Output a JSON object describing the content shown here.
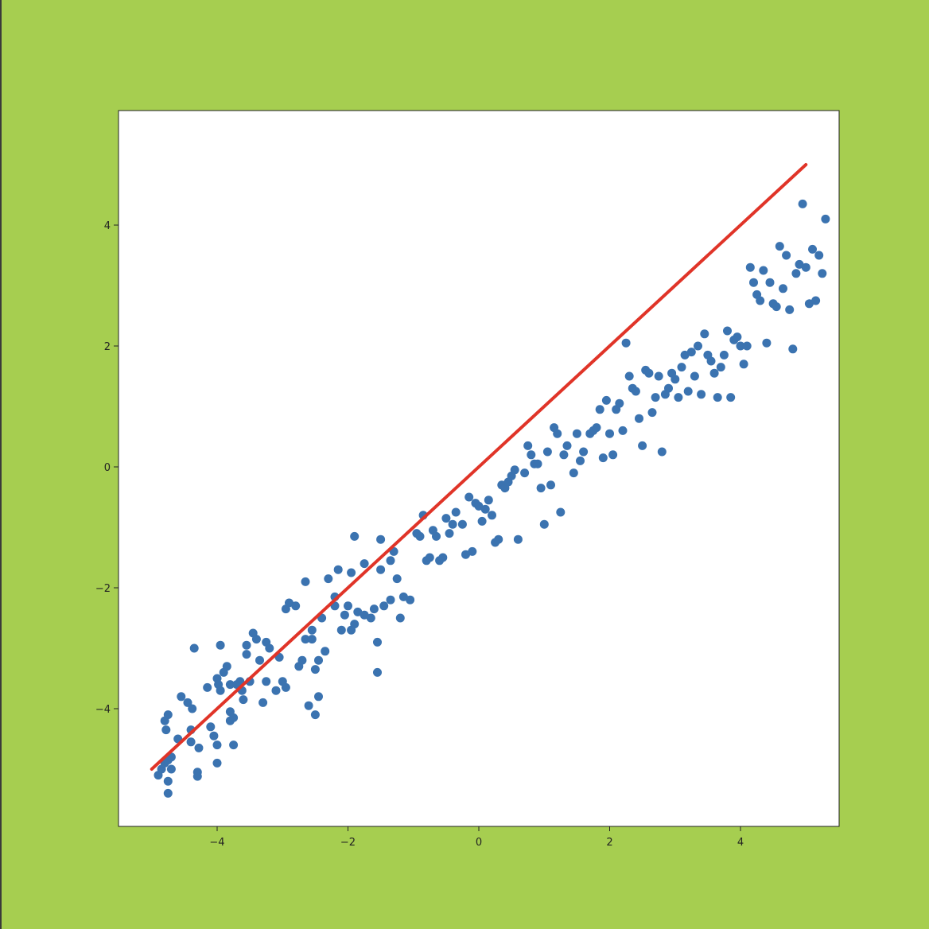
{
  "colors": {
    "background": "#a6ce50",
    "plot_area": "#ffffff",
    "points": "#3b73b0",
    "fit_line": "#e03428"
  },
  "chart_data": {
    "type": "scatter",
    "title": "",
    "xlabel": "",
    "ylabel": "",
    "xlim": [
      -5.5,
      5.5
    ],
    "ylim": [
      -5.9,
      5.9
    ],
    "grid": false,
    "x_ticks": [
      {
        "value": -4,
        "label": "−4"
      },
      {
        "value": -2,
        "label": "−2"
      },
      {
        "value": 0,
        "label": "0"
      },
      {
        "value": 2,
        "label": "2"
      },
      {
        "value": 4,
        "label": "4"
      }
    ],
    "y_ticks": [
      {
        "value": -4,
        "label": "−4"
      },
      {
        "value": -2,
        "label": "−2"
      },
      {
        "value": 0,
        "label": "0"
      },
      {
        "value": 2,
        "label": "2"
      },
      {
        "value": 4,
        "label": "4"
      }
    ],
    "fit_line": {
      "x": [
        -5,
        5
      ],
      "y": [
        -5,
        5
      ]
    },
    "points": [
      [
        -4.9,
        -5.1
      ],
      [
        -4.85,
        -5.0
      ],
      [
        -4.8,
        -4.9
      ],
      [
        -4.75,
        -4.85
      ],
      [
        -4.8,
        -4.2
      ],
      [
        -4.75,
        -4.1
      ],
      [
        -4.78,
        -4.35
      ],
      [
        -4.75,
        -5.2
      ],
      [
        -4.75,
        -5.4
      ],
      [
        -4.7,
        -5.0
      ],
      [
        -4.7,
        -4.8
      ],
      [
        -4.6,
        -4.5
      ],
      [
        -4.55,
        -3.8
      ],
      [
        -4.45,
        -3.9
      ],
      [
        -4.4,
        -4.55
      ],
      [
        -4.4,
        -4.35
      ],
      [
        -4.38,
        -4.0
      ],
      [
        -4.35,
        -3.0
      ],
      [
        -4.3,
        -5.05
      ],
      [
        -4.3,
        -5.12
      ],
      [
        -4.28,
        -4.65
      ],
      [
        -4.15,
        -3.65
      ],
      [
        -4.1,
        -4.3
      ],
      [
        -4.05,
        -4.45
      ],
      [
        -4.0,
        -3.5
      ],
      [
        -4.0,
        -4.9
      ],
      [
        -4.0,
        -4.6
      ],
      [
        -3.98,
        -3.6
      ],
      [
        -3.95,
        -3.7
      ],
      [
        -3.95,
        -2.95
      ],
      [
        -3.9,
        -3.4
      ],
      [
        -3.85,
        -3.3
      ],
      [
        -3.8,
        -3.6
      ],
      [
        -3.8,
        -4.05
      ],
      [
        -3.8,
        -4.2
      ],
      [
        -3.75,
        -4.15
      ],
      [
        -3.75,
        -4.6
      ],
      [
        -3.7,
        -3.6
      ],
      [
        -3.65,
        -3.55
      ],
      [
        -3.62,
        -3.7
      ],
      [
        -3.6,
        -3.85
      ],
      [
        -3.55,
        -3.1
      ],
      [
        -3.55,
        -2.95
      ],
      [
        -3.5,
        -3.55
      ],
      [
        -3.45,
        -2.75
      ],
      [
        -3.4,
        -2.85
      ],
      [
        -3.35,
        -3.2
      ],
      [
        -3.3,
        -3.9
      ],
      [
        -3.25,
        -2.9
      ],
      [
        -3.25,
        -3.55
      ],
      [
        -3.2,
        -3.0
      ],
      [
        -3.1,
        -3.7
      ],
      [
        -3.05,
        -3.15
      ],
      [
        -3.0,
        -3.55
      ],
      [
        -2.95,
        -3.65
      ],
      [
        -2.95,
        -2.35
      ],
      [
        -2.9,
        -2.25
      ],
      [
        -2.8,
        -2.3
      ],
      [
        -2.75,
        -3.3
      ],
      [
        -2.7,
        -3.2
      ],
      [
        -2.65,
        -2.85
      ],
      [
        -2.65,
        -1.9
      ],
      [
        -2.6,
        -3.95
      ],
      [
        -2.55,
        -2.7
      ],
      [
        -2.55,
        -2.85
      ],
      [
        -2.5,
        -4.1
      ],
      [
        -2.5,
        -3.35
      ],
      [
        -2.45,
        -3.8
      ],
      [
        -2.45,
        -3.2
      ],
      [
        -2.4,
        -2.5
      ],
      [
        -2.35,
        -3.05
      ],
      [
        -2.3,
        -1.85
      ],
      [
        -2.2,
        -2.15
      ],
      [
        -2.2,
        -2.3
      ],
      [
        -2.15,
        -1.7
      ],
      [
        -2.1,
        -2.7
      ],
      [
        -2.05,
        -2.45
      ],
      [
        -2.0,
        -2.3
      ],
      [
        -1.95,
        -1.75
      ],
      [
        -1.95,
        -2.7
      ],
      [
        -1.9,
        -2.6
      ],
      [
        -1.9,
        -1.15
      ],
      [
        -1.85,
        -2.4
      ],
      [
        -1.75,
        -2.45
      ],
      [
        -1.75,
        -1.6
      ],
      [
        -1.65,
        -2.5
      ],
      [
        -1.6,
        -2.35
      ],
      [
        -1.55,
        -2.9
      ],
      [
        -1.55,
        -3.4
      ],
      [
        -1.5,
        -1.2
      ],
      [
        -1.5,
        -1.7
      ],
      [
        -1.45,
        -2.3
      ],
      [
        -1.35,
        -1.55
      ],
      [
        -1.35,
        -2.2
      ],
      [
        -1.3,
        -1.4
      ],
      [
        -1.25,
        -1.85
      ],
      [
        -1.2,
        -2.5
      ],
      [
        -1.15,
        -2.15
      ],
      [
        -1.05,
        -2.2
      ],
      [
        -0.95,
        -1.1
      ],
      [
        -0.9,
        -1.15
      ],
      [
        -0.85,
        -0.8
      ],
      [
        -0.8,
        -1.55
      ],
      [
        -0.75,
        -1.5
      ],
      [
        -0.7,
        -1.05
      ],
      [
        -0.65,
        -1.15
      ],
      [
        -0.6,
        -1.55
      ],
      [
        -0.55,
        -1.5
      ],
      [
        -0.5,
        -0.85
      ],
      [
        -0.45,
        -1.1
      ],
      [
        -0.4,
        -0.95
      ],
      [
        -0.35,
        -0.75
      ],
      [
        -0.25,
        -0.95
      ],
      [
        -0.2,
        -1.45
      ],
      [
        -0.15,
        -0.5
      ],
      [
        -0.1,
        -1.4
      ],
      [
        -0.05,
        -0.6
      ],
      [
        0.0,
        -0.65
      ],
      [
        0.05,
        -0.9
      ],
      [
        0.1,
        -0.7
      ],
      [
        0.15,
        -0.55
      ],
      [
        0.2,
        -0.8
      ],
      [
        0.25,
        -1.25
      ],
      [
        0.3,
        -1.2
      ],
      [
        0.35,
        -0.3
      ],
      [
        0.4,
        -0.35
      ],
      [
        0.45,
        -0.25
      ],
      [
        0.5,
        -0.15
      ],
      [
        0.55,
        -0.05
      ],
      [
        0.6,
        -1.2
      ],
      [
        0.7,
        -0.1
      ],
      [
        0.75,
        0.35
      ],
      [
        0.8,
        0.2
      ],
      [
        0.85,
        0.05
      ],
      [
        0.9,
        0.05
      ],
      [
        0.95,
        -0.35
      ],
      [
        1.0,
        -0.95
      ],
      [
        1.05,
        0.25
      ],
      [
        1.1,
        -0.3
      ],
      [
        1.15,
        0.65
      ],
      [
        1.2,
        0.55
      ],
      [
        1.25,
        -0.75
      ],
      [
        1.3,
        0.2
      ],
      [
        1.35,
        0.35
      ],
      [
        1.45,
        -0.1
      ],
      [
        1.5,
        0.55
      ],
      [
        1.55,
        0.1
      ],
      [
        1.6,
        0.25
      ],
      [
        1.7,
        0.55
      ],
      [
        1.75,
        0.6
      ],
      [
        1.8,
        0.65
      ],
      [
        1.85,
        0.95
      ],
      [
        1.9,
        0.15
      ],
      [
        1.95,
        1.1
      ],
      [
        2.0,
        0.55
      ],
      [
        2.05,
        0.2
      ],
      [
        2.1,
        0.95
      ],
      [
        2.15,
        1.05
      ],
      [
        2.2,
        0.6
      ],
      [
        2.25,
        2.05
      ],
      [
        2.3,
        1.5
      ],
      [
        2.35,
        1.3
      ],
      [
        2.4,
        1.25
      ],
      [
        2.45,
        0.8
      ],
      [
        2.5,
        0.35
      ],
      [
        2.55,
        1.6
      ],
      [
        2.6,
        1.55
      ],
      [
        2.65,
        0.9
      ],
      [
        2.7,
        1.15
      ],
      [
        2.75,
        1.5
      ],
      [
        2.8,
        0.25
      ],
      [
        2.85,
        1.2
      ],
      [
        2.9,
        1.3
      ],
      [
        2.95,
        1.55
      ],
      [
        3.0,
        1.45
      ],
      [
        3.05,
        1.15
      ],
      [
        3.1,
        1.65
      ],
      [
        3.15,
        1.85
      ],
      [
        3.2,
        1.25
      ],
      [
        3.25,
        1.9
      ],
      [
        3.3,
        1.5
      ],
      [
        3.35,
        2.0
      ],
      [
        3.4,
        1.2
      ],
      [
        3.45,
        2.2
      ],
      [
        3.5,
        1.85
      ],
      [
        3.55,
        1.75
      ],
      [
        3.6,
        1.55
      ],
      [
        3.65,
        1.15
      ],
      [
        3.7,
        1.65
      ],
      [
        3.75,
        1.85
      ],
      [
        3.8,
        2.25
      ],
      [
        3.85,
        1.15
      ],
      [
        3.9,
        2.1
      ],
      [
        3.95,
        2.15
      ],
      [
        4.0,
        2.0
      ],
      [
        4.05,
        1.7
      ],
      [
        4.1,
        2.0
      ],
      [
        4.15,
        3.3
      ],
      [
        4.2,
        3.05
      ],
      [
        4.25,
        2.85
      ],
      [
        4.3,
        2.75
      ],
      [
        4.35,
        3.25
      ],
      [
        4.4,
        2.05
      ],
      [
        4.45,
        3.05
      ],
      [
        4.5,
        2.7
      ],
      [
        4.55,
        2.65
      ],
      [
        4.6,
        3.65
      ],
      [
        4.65,
        2.95
      ],
      [
        4.7,
        3.5
      ],
      [
        4.75,
        2.6
      ],
      [
        4.8,
        1.95
      ],
      [
        4.85,
        3.2
      ],
      [
        4.9,
        3.35
      ],
      [
        4.95,
        4.35
      ],
      [
        5.0,
        3.3
      ],
      [
        5.05,
        2.7
      ],
      [
        5.1,
        3.6
      ],
      [
        5.15,
        2.75
      ],
      [
        5.2,
        3.5
      ],
      [
        5.25,
        3.2
      ],
      [
        5.3,
        4.1
      ]
    ]
  }
}
